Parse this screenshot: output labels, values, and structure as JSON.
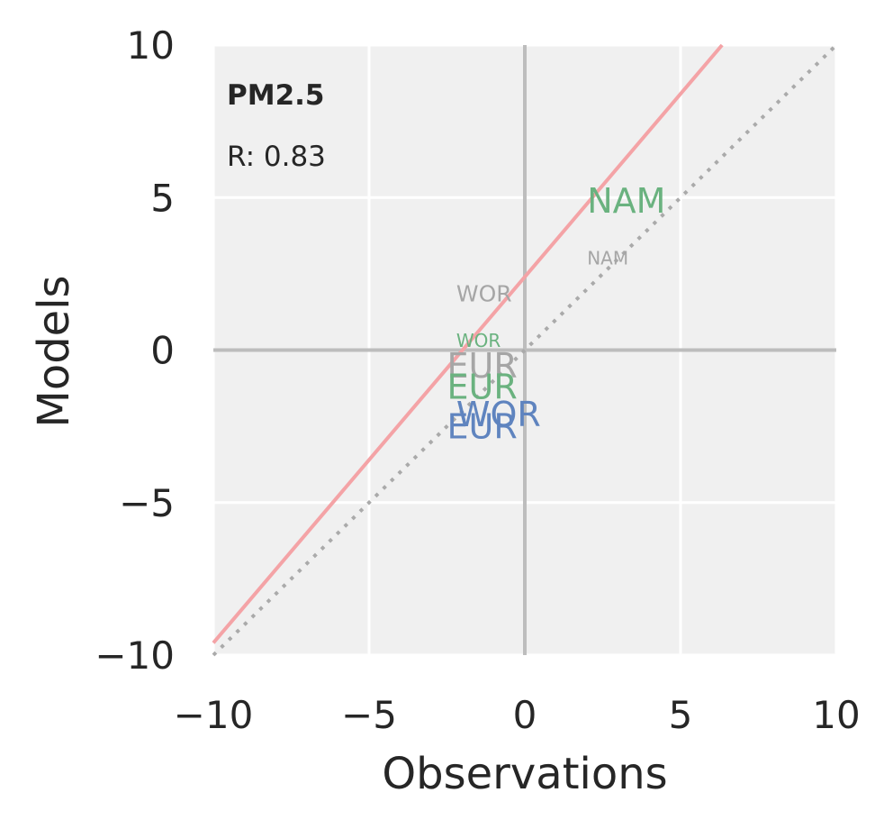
{
  "chart_data": {
    "type": "scatter",
    "title": "PM2.5",
    "stats": {
      "r_text": "R: 0.83"
    },
    "xlabel": "Observations",
    "ylabel": "Models",
    "xlim": [
      -10,
      10
    ],
    "ylim": [
      -10,
      10
    ],
    "xticks": [
      -10,
      -5,
      0,
      5,
      10
    ],
    "yticks": [
      -10,
      -5,
      0,
      5,
      10
    ],
    "xtick_labels": [
      "−10",
      "−5",
      "0",
      "5",
      "10"
    ],
    "ytick_labels": [
      "−10",
      "−5",
      "0",
      "5",
      "10"
    ],
    "grid": true,
    "reference_lines": [
      {
        "kind": "one_to_one",
        "style": "dotted",
        "color": "#aaaaaa"
      },
      {
        "kind": "fit",
        "style": "solid",
        "color": "#f4a3a6",
        "slope": 1.2,
        "intercept": 2.4
      },
      {
        "kind": "zero_axes",
        "style": "solid",
        "color": "#bdbdbd"
      }
    ],
    "points": [
      {
        "label": "NAM",
        "x": 2.0,
        "y": 4.5,
        "color": "#6ab27f",
        "size": "large"
      },
      {
        "label": "NAM",
        "x": 2.0,
        "y": 2.8,
        "color": "#a6a6a6",
        "size": "small"
      },
      {
        "label": "WOR",
        "x": -2.2,
        "y": 1.6,
        "color": "#a6a6a6",
        "size": "medium"
      },
      {
        "label": "WOR",
        "x": -2.2,
        "y": 0.1,
        "color": "#6ab27f",
        "size": "small"
      },
      {
        "label": "EUR",
        "x": -2.5,
        "y": -0.9,
        "color": "#a6a6a6",
        "size": "large"
      },
      {
        "label": "EUR",
        "x": -2.5,
        "y": -1.6,
        "color": "#6ab27f",
        "size": "large"
      },
      {
        "label": "WOR",
        "x": -2.2,
        "y": -2.5,
        "color": "#5f84bf",
        "size": "large"
      },
      {
        "label": "EUR",
        "x": -2.5,
        "y": -2.9,
        "color": "#5f84bf",
        "size": "large"
      }
    ]
  }
}
